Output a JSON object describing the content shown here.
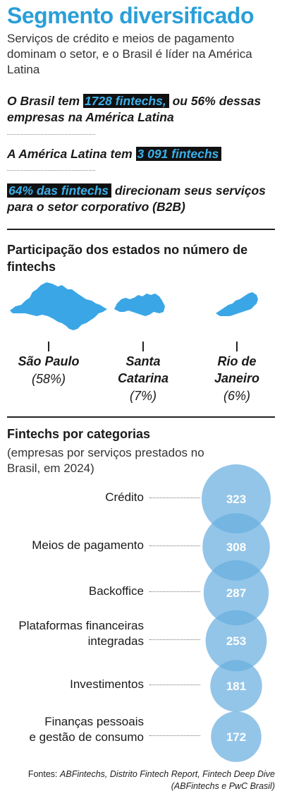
{
  "header": {
    "title": "Segmento diversificado",
    "subtitle": "Serviços de crédito e meios de pagamento dominam o setor, e o Brasil é líder na América Latina"
  },
  "facts": [
    {
      "pre": "O Brasil tem ",
      "highlight": "1728 fintechs,",
      "post": " ou 56% dessas empresas na América Latina"
    },
    {
      "pre": "A América Latina tem ",
      "highlight": "3 091 fintechs",
      "post": ""
    },
    {
      "pre": "",
      "highlight": "64% das fintechs",
      "post": " direcionam seus serviços para o setor corporativo (B2B)"
    }
  ],
  "states_section": {
    "title": "Participação dos estados no número de fintechs",
    "states": [
      {
        "name": "São Paulo",
        "pct": "(58%)",
        "icon": "sao-paulo-map-icon"
      },
      {
        "name": "Santa Catarina",
        "pct": "(7%)",
        "icon": "santa-catarina-map-icon"
      },
      {
        "name": "Rio de Janeiro",
        "pct": "(6%)",
        "icon": "rio-de-janeiro-map-icon"
      }
    ]
  },
  "categories_section": {
    "title": "Fintechs por categorias",
    "subtitle": "(empresas por serviços prestados no Brasil, em 2024)"
  },
  "chart_data": {
    "type": "bubble",
    "title": "Fintechs por categorias",
    "subtitle": "(empresas por serviços prestados no Brasil, em 2024)",
    "categories": [
      "Crédito",
      "Meios de pagamento",
      "Backoffice",
      "Plataformas financeiras integradas",
      "Investimentos",
      "Finanças pessoais e gestão de consumo"
    ],
    "values": [
      323,
      308,
      287,
      253,
      181,
      172
    ],
    "value_labels": [
      "323",
      "308",
      "287",
      "253",
      "181",
      "172"
    ],
    "color": "#6aaedf"
  },
  "sources": {
    "prefix": "Fontes: ",
    "text": "ABFintechs, Distrito Fintech Report, Fintech Deep Dive (ABFintechs e PwC Brasil)"
  },
  "colors": {
    "accent": "#2a9fd8",
    "highlight_bg": "#111111",
    "map_fill": "#3aa6e6",
    "bubble": "#6aaedf",
    "bubble_overlap": "#2f86c8"
  }
}
